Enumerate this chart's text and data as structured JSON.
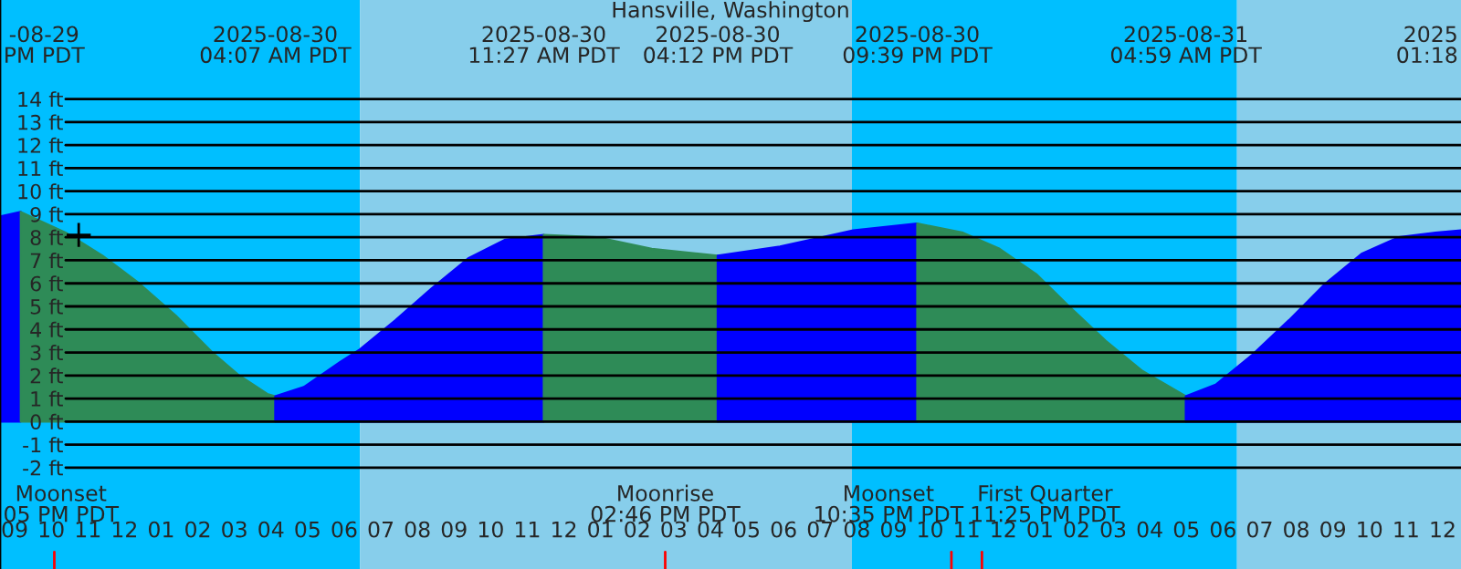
{
  "chart_data": {
    "type": "area",
    "title": "Hansville, Washington",
    "xlim": [
      "2025-08-29T20:36",
      "2025-08-31T12:30"
    ],
    "ylim": [
      -6.4,
      18.3
    ],
    "xticks": [
      {
        "value": "2025-08-29T21:00",
        "label": "09"
      },
      {
        "value": "2025-08-29T22:00",
        "label": "10"
      },
      {
        "value": "2025-08-29T23:00",
        "label": "11"
      },
      {
        "value": "2025-08-30T00:00",
        "label": "12"
      },
      {
        "value": "2025-08-30T01:00",
        "label": "01"
      },
      {
        "value": "2025-08-30T02:00",
        "label": "02"
      },
      {
        "value": "2025-08-30T03:00",
        "label": "03"
      },
      {
        "value": "2025-08-30T04:00",
        "label": "04"
      },
      {
        "value": "2025-08-30T05:00",
        "label": "05"
      },
      {
        "value": "2025-08-30T06:00",
        "label": "06"
      },
      {
        "value": "2025-08-30T07:00",
        "label": "07"
      },
      {
        "value": "2025-08-30T08:00",
        "label": "08"
      },
      {
        "value": "2025-08-30T09:00",
        "label": "09"
      },
      {
        "value": "2025-08-30T10:00",
        "label": "10"
      },
      {
        "value": "2025-08-30T11:00",
        "label": "11"
      },
      {
        "value": "2025-08-30T12:00",
        "label": "12"
      },
      {
        "value": "2025-08-30T13:00",
        "label": "01"
      },
      {
        "value": "2025-08-30T14:00",
        "label": "02"
      },
      {
        "value": "2025-08-30T15:00",
        "label": "03"
      },
      {
        "value": "2025-08-30T16:00",
        "label": "04"
      },
      {
        "value": "2025-08-30T17:00",
        "label": "05"
      },
      {
        "value": "2025-08-30T18:00",
        "label": "06"
      },
      {
        "value": "2025-08-30T19:00",
        "label": "07"
      },
      {
        "value": "2025-08-30T20:00",
        "label": "08"
      },
      {
        "value": "2025-08-30T21:00",
        "label": "09"
      },
      {
        "value": "2025-08-30T22:00",
        "label": "10"
      },
      {
        "value": "2025-08-30T23:00",
        "label": "11"
      },
      {
        "value": "2025-08-31T00:00",
        "label": "12"
      },
      {
        "value": "2025-08-31T01:00",
        "label": "01"
      },
      {
        "value": "2025-08-31T02:00",
        "label": "02"
      },
      {
        "value": "2025-08-31T03:00",
        "label": "03"
      },
      {
        "value": "2025-08-31T04:00",
        "label": "04"
      },
      {
        "value": "2025-08-31T05:00",
        "label": "05"
      },
      {
        "value": "2025-08-31T06:00",
        "label": "06"
      },
      {
        "value": "2025-08-31T07:00",
        "label": "07"
      },
      {
        "value": "2025-08-31T08:00",
        "label": "08"
      },
      {
        "value": "2025-08-31T09:00",
        "label": "09"
      },
      {
        "value": "2025-08-31T10:00",
        "label": "10"
      },
      {
        "value": "2025-08-31T11:00",
        "label": "11"
      },
      {
        "value": "2025-08-31T12:00",
        "label": "12"
      }
    ],
    "yticks": [
      {
        "value": -2,
        "label": "-2 ft"
      },
      {
        "value": -1,
        "label": "-1 ft"
      },
      {
        "value": 0,
        "label": "0 ft"
      },
      {
        "value": 1,
        "label": "1 ft"
      },
      {
        "value": 2,
        "label": "2 ft"
      },
      {
        "value": 3,
        "label": "3 ft"
      },
      {
        "value": 4,
        "label": "4 ft"
      },
      {
        "value": 5,
        "label": "5 ft"
      },
      {
        "value": 6,
        "label": "6 ft"
      },
      {
        "value": 7,
        "label": "7 ft"
      },
      {
        "value": 8,
        "label": "8 ft"
      },
      {
        "value": 9,
        "label": "9 ft"
      },
      {
        "value": 10,
        "label": "10 ft"
      },
      {
        "value": 11,
        "label": "11 ft"
      },
      {
        "value": 12,
        "label": "12 ft"
      },
      {
        "value": 13,
        "label": "13 ft"
      },
      {
        "value": 14,
        "label": "14 ft"
      }
    ],
    "grid": "y",
    "series": [
      {
        "color": "#0000ff",
        "x": [
          "2025-08-29T20:36",
          "2025-08-29T21:10"
        ],
        "values": [
          8.9,
          9.1
        ]
      },
      {
        "color": "#2e8b57",
        "x": [
          "2025-08-29T21:10",
          "2025-08-29T22:24",
          "2025-08-29T23:24",
          "2025-08-30T00:24",
          "2025-08-30T01:24",
          "2025-08-30T02:24",
          "2025-08-30T03:08",
          "2025-08-30T03:54",
          "2025-08-30T04:07"
        ],
        "values": [
          9.1,
          8.2,
          7.2,
          6.0,
          4.6,
          3.0,
          2.0,
          1.2,
          1.1
        ]
      },
      {
        "color": "#0000ff",
        "x": [
          "2025-08-30T04:07",
          "2025-08-30T04:54",
          "2025-08-30T05:54",
          "2025-08-30T06:24",
          "2025-08-30T07:24",
          "2025-08-30T08:24",
          "2025-08-30T09:24",
          "2025-08-30T10:24",
          "2025-08-30T11:27"
        ],
        "values": [
          1.1,
          1.5,
          2.6,
          3.1,
          4.4,
          5.8,
          7.1,
          7.9,
          8.1
        ]
      },
      {
        "color": "#2e8b57",
        "x": [
          "2025-08-30T11:27",
          "2025-08-30T12:54",
          "2025-08-30T14:24",
          "2025-08-30T16:12"
        ],
        "values": [
          8.1,
          8.0,
          7.5,
          7.2
        ]
      },
      {
        "color": "#0000ff",
        "x": [
          "2025-08-30T16:12",
          "2025-08-30T17:54",
          "2025-08-30T19:54",
          "2025-08-30T21:39"
        ],
        "values": [
          7.2,
          7.6,
          8.3,
          8.6
        ]
      },
      {
        "color": "#2e8b57",
        "x": [
          "2025-08-30T21:39",
          "2025-08-30T22:54",
          "2025-08-30T23:54",
          "2025-08-31T00:54",
          "2025-08-31T01:48",
          "2025-08-31T02:48",
          "2025-08-31T03:48",
          "2025-08-31T04:59"
        ],
        "values": [
          8.6,
          8.2,
          7.5,
          6.4,
          5.0,
          3.5,
          2.2,
          1.1
        ]
      },
      {
        "color": "#0000ff",
        "x": [
          "2025-08-31T04:59",
          "2025-08-31T05:48",
          "2025-08-31T06:48",
          "2025-08-31T07:48",
          "2025-08-31T08:48",
          "2025-08-31T09:48",
          "2025-08-31T10:48",
          "2025-08-31T11:48",
          "2025-08-31T12:30"
        ],
        "values": [
          1.1,
          1.6,
          2.9,
          4.4,
          6.0,
          7.3,
          8.0,
          8.2,
          8.3
        ]
      },
      {
        "type": "scatter",
        "marker": "cross",
        "color": "#000000",
        "x": [
          "2025-08-29T22:45"
        ],
        "values": [
          8.1
        ]
      }
    ],
    "bands": [
      {
        "axis": "x",
        "from": "2025-08-29T20:36",
        "to": "2025-08-30T06:26",
        "color": "#00bfff"
      },
      {
        "axis": "x",
        "from": "2025-08-30T06:26",
        "to": "2025-08-30T19:52",
        "color": "#87ceeb"
      },
      {
        "axis": "x",
        "from": "2025-08-30T19:52",
        "to": "2025-08-31T06:23",
        "color": "#00bfff"
      },
      {
        "axis": "x",
        "from": "2025-08-31T06:23",
        "to": "2025-08-31T12:30",
        "color": "#87ceeb"
      }
    ],
    "ref_lines": [
      {
        "axis": "x",
        "value": "2025-08-29T22:05",
        "label": "Moonset\n05 PM PDT",
        "color": "#ff0000"
      },
      {
        "axis": "x",
        "value": "2025-08-30T14:46",
        "label": "Moonrise\n02:46 PM PDT",
        "color": "#ff0000"
      },
      {
        "axis": "x",
        "value": "2025-08-30T22:35",
        "label": "Moonset\n10:35 PM PDT",
        "color": "#ff0000"
      },
      {
        "axis": "x",
        "value": "2025-08-30T23:25",
        "label": "First Quarter\n11:25 PM PDT",
        "color": "#ff0000"
      }
    ],
    "annotations": [
      "-08-29\nPM PDT",
      "2025-08-30\n04:07 AM PDT",
      "2025-08-30\n11:27 AM PDT",
      "2025-08-30\n04:12 PM PDT",
      "2025-08-30\n09:39 PM PDT",
      "2025-08-31\n04:59 AM PDT",
      "2025\n01:18"
    ]
  }
}
